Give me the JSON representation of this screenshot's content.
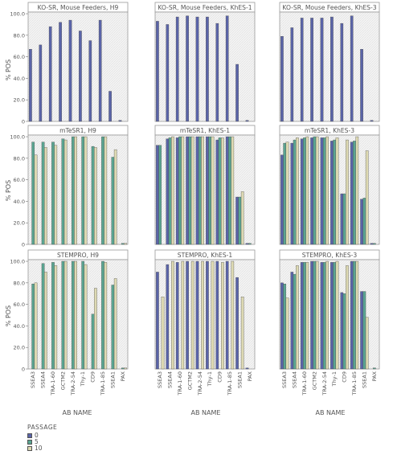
{
  "chart_data": {
    "type": "bar",
    "ylabel": "% POS",
    "xlabel": "AB NAME",
    "ylim": [
      0,
      100
    ],
    "yticks": [
      "0",
      "20.0",
      "40.0",
      "60.0",
      "80.0",
      "100.0"
    ],
    "categories": [
      "SSEA3",
      "SSEA4",
      "TRA-1-60",
      "GCTM2",
      "TRA-2-54",
      "Thy-1",
      "CD9",
      "TRA-1-85",
      "SSEA1",
      "PAX"
    ],
    "category_tick_labels": [
      "SSEA3",
      "SSEA4",
      "TRA-1-60",
      "GCTM2",
      "TRA-2-54",
      "Thy-1",
      "CD9",
      "TRA-1-85",
      "SSEA1",
      "PAX"
    ],
    "legend": {
      "title": "PASSAGE",
      "items": [
        {
          "label": "0",
          "color": "#5a64a8"
        },
        {
          "label": "5",
          "color": "#5aa591"
        },
        {
          "label": "10",
          "color": "#ddd9b2"
        }
      ]
    },
    "series_colors": [
      "#5a64a8",
      "#5aa591",
      "#ddd9b2"
    ],
    "panels": [
      {
        "title": "KO-SR, Mouse Feeders, H9",
        "series": [
          {
            "values": [
              67,
              71,
              88,
              92,
              94,
              84,
              75,
              94,
              28,
              1
            ]
          },
          {
            "values": []
          },
          {
            "values": []
          }
        ]
      },
      {
        "title": "KO-SR, Mouse Feeders, KhES-1",
        "series": [
          {
            "values": [
              93,
              90,
              97,
              98,
              97,
              97,
              91,
              98,
              53,
              1
            ]
          },
          {
            "values": []
          },
          {
            "values": []
          }
        ]
      },
      {
        "title": "KO-SR, Mouse Feeders, KhES-3",
        "series": [
          {
            "values": [
              79,
              87,
              96,
              96,
              96,
              97,
              91,
              98,
              67,
              1
            ]
          },
          {
            "values": []
          },
          {
            "values": []
          }
        ]
      },
      {
        "title": "mTeSR1, H9",
        "series": [
          {
            "values": [
              null,
              null,
              null,
              null,
              null,
              null,
              null,
              null,
              null,
              null
            ]
          },
          {
            "values": [
              95,
              95,
              95,
              98,
              100,
              100,
              91,
              100,
              81,
              1
            ]
          },
          {
            "values": [
              83,
              90,
              92,
              97,
              100,
              100,
              90,
              100,
              88,
              1
            ]
          }
        ]
      },
      {
        "title": "mTeSR1, KhES-1",
        "series": [
          {
            "values": [
              92,
              98,
              99,
              100,
              100,
              100,
              97,
              100,
              44,
              1
            ]
          },
          {
            "values": [
              92,
              99,
              100,
              100,
              100,
              100,
              99,
              100,
              44,
              1
            ]
          },
          {
            "values": [
              null,
              100,
              100,
              100,
              100,
              100,
              99,
              100,
              49,
              null
            ]
          }
        ]
      },
      {
        "title": "mTeSR1, KhES-3",
        "series": [
          {
            "values": [
              83,
              94,
              98,
              99,
              99,
              96,
              47,
              95,
              42,
              1
            ]
          },
          {
            "values": [
              94,
              97,
              99,
              100,
              99,
              97,
              47,
              96,
              43,
              1
            ]
          },
          {
            "values": [
              95,
              99,
              100,
              100,
              100,
              99,
              97,
              100,
              87,
              null
            ]
          }
        ]
      },
      {
        "title": "STEMPRO, H9",
        "series": [
          {
            "values": [
              null,
              null,
              null,
              null,
              null,
              null,
              null,
              null,
              null,
              null
            ]
          },
          {
            "values": [
              79,
              98,
              99,
              100,
              100,
              100,
              51,
              100,
              78,
              1
            ]
          },
          {
            "values": [
              80,
              90,
              96,
              100,
              100,
              97,
              75,
              99,
              84,
              1
            ]
          }
        ]
      },
      {
        "title": "STEMPRO, KhES-1",
        "series": [
          {
            "values": [
              90,
              97,
              99,
              100,
              100,
              100,
              100,
              100,
              85,
              1
            ]
          },
          {
            "values": [
              null,
              null,
              null,
              null,
              null,
              null,
              null,
              null,
              null,
              null
            ]
          },
          {
            "values": [
              67,
              100,
              100,
              100,
              100,
              100,
              99,
              100,
              67,
              null
            ]
          }
        ]
      },
      {
        "title": "STEMPRO, KhES-3",
        "series": [
          {
            "values": [
              80,
              90,
              99,
              100,
              99,
              99,
              71,
              100,
              72,
              null
            ]
          },
          {
            "values": [
              79,
              88,
              99,
              100,
              99,
              99,
              70,
              100,
              72,
              1
            ]
          },
          {
            "values": [
              66,
              96,
              99,
              100,
              100,
              100,
              96,
              100,
              48,
              null
            ]
          }
        ]
      }
    ]
  }
}
